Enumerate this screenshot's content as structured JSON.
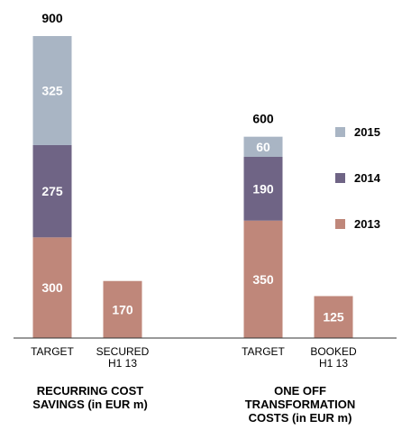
{
  "chart_data": {
    "type": "bar",
    "stacked": true,
    "title": "",
    "xlabel": "",
    "ylabel": "",
    "ylim": [
      0,
      900
    ],
    "grid": false,
    "legend_position": "right",
    "colors": {
      "2015": "#a9b5c4",
      "2014": "#6f6485",
      "2013": "#bf877a"
    },
    "legend": [
      "2015",
      "2014",
      "2013"
    ],
    "groups": [
      {
        "label_lines": [
          "RECURRING COST",
          "SAVINGS (in EUR m)"
        ],
        "bars": [
          {
            "category_lines": [
              "TARGET"
            ],
            "total": "900",
            "segments": [
              {
                "series": "2013",
                "value": 300
              },
              {
                "series": "2014",
                "value": 275
              },
              {
                "series": "2015",
                "value": 325
              }
            ]
          },
          {
            "category_lines": [
              "SECURED",
              "H1 13"
            ],
            "total": "",
            "segments": [
              {
                "series": "2013",
                "value": 170
              }
            ]
          }
        ]
      },
      {
        "label_lines": [
          "ONE OFF",
          "TRANSFORMATION",
          "COSTS (in EUR m)"
        ],
        "bars": [
          {
            "category_lines": [
              "TARGET"
            ],
            "total": "600",
            "segments": [
              {
                "series": "2013",
                "value": 350
              },
              {
                "series": "2014",
                "value": 190
              },
              {
                "series": "2015",
                "value": 60
              }
            ]
          },
          {
            "category_lines": [
              "BOOKED",
              "H1 13"
            ],
            "total": "",
            "segments": [
              {
                "series": "2013",
                "value": 125
              }
            ]
          }
        ]
      }
    ]
  }
}
